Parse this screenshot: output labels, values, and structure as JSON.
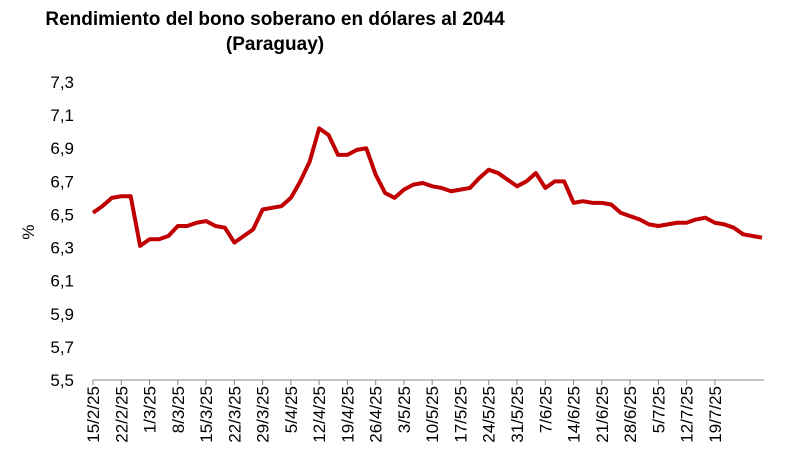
{
  "chart_data": {
    "type": "line",
    "title": [
      "Rendimiento del bono soberano en dólares al 2044",
      "(Paraguay)"
    ],
    "y_label": "%",
    "categories": [
      "15/2/25",
      null,
      null,
      "22/2/25",
      null,
      null,
      "1/3/25",
      null,
      null,
      "8/3/25",
      null,
      null,
      "15/3/25",
      null,
      null,
      "22/3/25",
      null,
      null,
      "29/3/25",
      null,
      null,
      "5/4/25",
      null,
      null,
      "12/4/25",
      null,
      null,
      "19/4/25",
      null,
      null,
      "26/4/25",
      null,
      null,
      "3/5/25",
      null,
      null,
      "10/5/25",
      null,
      null,
      "17/5/25",
      null,
      null,
      "24/5/25",
      null,
      null,
      "31/5/25",
      null,
      null,
      "7/6/25",
      null,
      null,
      "14/6/25",
      null,
      null,
      "21/6/25",
      null,
      null,
      "28/6/25",
      null,
      null,
      "5/7/25",
      null,
      null,
      "12/7/25",
      null,
      null,
      "19/7/25",
      null,
      null,
      null,
      null,
      null
    ],
    "values": [
      6.51,
      6.55,
      6.6,
      6.61,
      6.61,
      6.31,
      6.35,
      6.35,
      6.37,
      6.43,
      6.43,
      6.45,
      6.46,
      6.43,
      6.42,
      6.33,
      6.37,
      6.41,
      6.53,
      6.54,
      6.55,
      6.6,
      6.7,
      6.82,
      7.02,
      6.98,
      6.86,
      6.86,
      6.89,
      6.9,
      6.74,
      6.63,
      6.6,
      6.65,
      6.68,
      6.69,
      6.67,
      6.66,
      6.64,
      6.65,
      6.66,
      6.72,
      6.77,
      6.75,
      6.71,
      6.67,
      6.7,
      6.75,
      6.66,
      6.7,
      6.7,
      6.57,
      6.58,
      6.57,
      6.57,
      6.56,
      6.51,
      6.49,
      6.47,
      6.44,
      6.43,
      6.44,
      6.45,
      6.45,
      6.47,
      6.48,
      6.45,
      6.44,
      6.42,
      6.38,
      6.37,
      6.36
    ],
    "color": "#c00000",
    "ylim": [
      5.5,
      7.3
    ],
    "yticks": [
      {
        "value": 5.5,
        "label": "5,5"
      },
      {
        "value": 5.7,
        "label": "5,7"
      },
      {
        "value": 5.9,
        "label": "5,9"
      },
      {
        "value": 6.1,
        "label": "6,1"
      },
      {
        "value": 6.3,
        "label": "6,3"
      },
      {
        "value": 6.5,
        "label": "6,5"
      },
      {
        "value": 6.7,
        "label": "6,7"
      },
      {
        "value": 6.9,
        "label": "6,9"
      },
      {
        "value": 7.1,
        "label": "7,1"
      },
      {
        "value": 7.3,
        "label": "7,3"
      }
    ],
    "grid": false
  }
}
